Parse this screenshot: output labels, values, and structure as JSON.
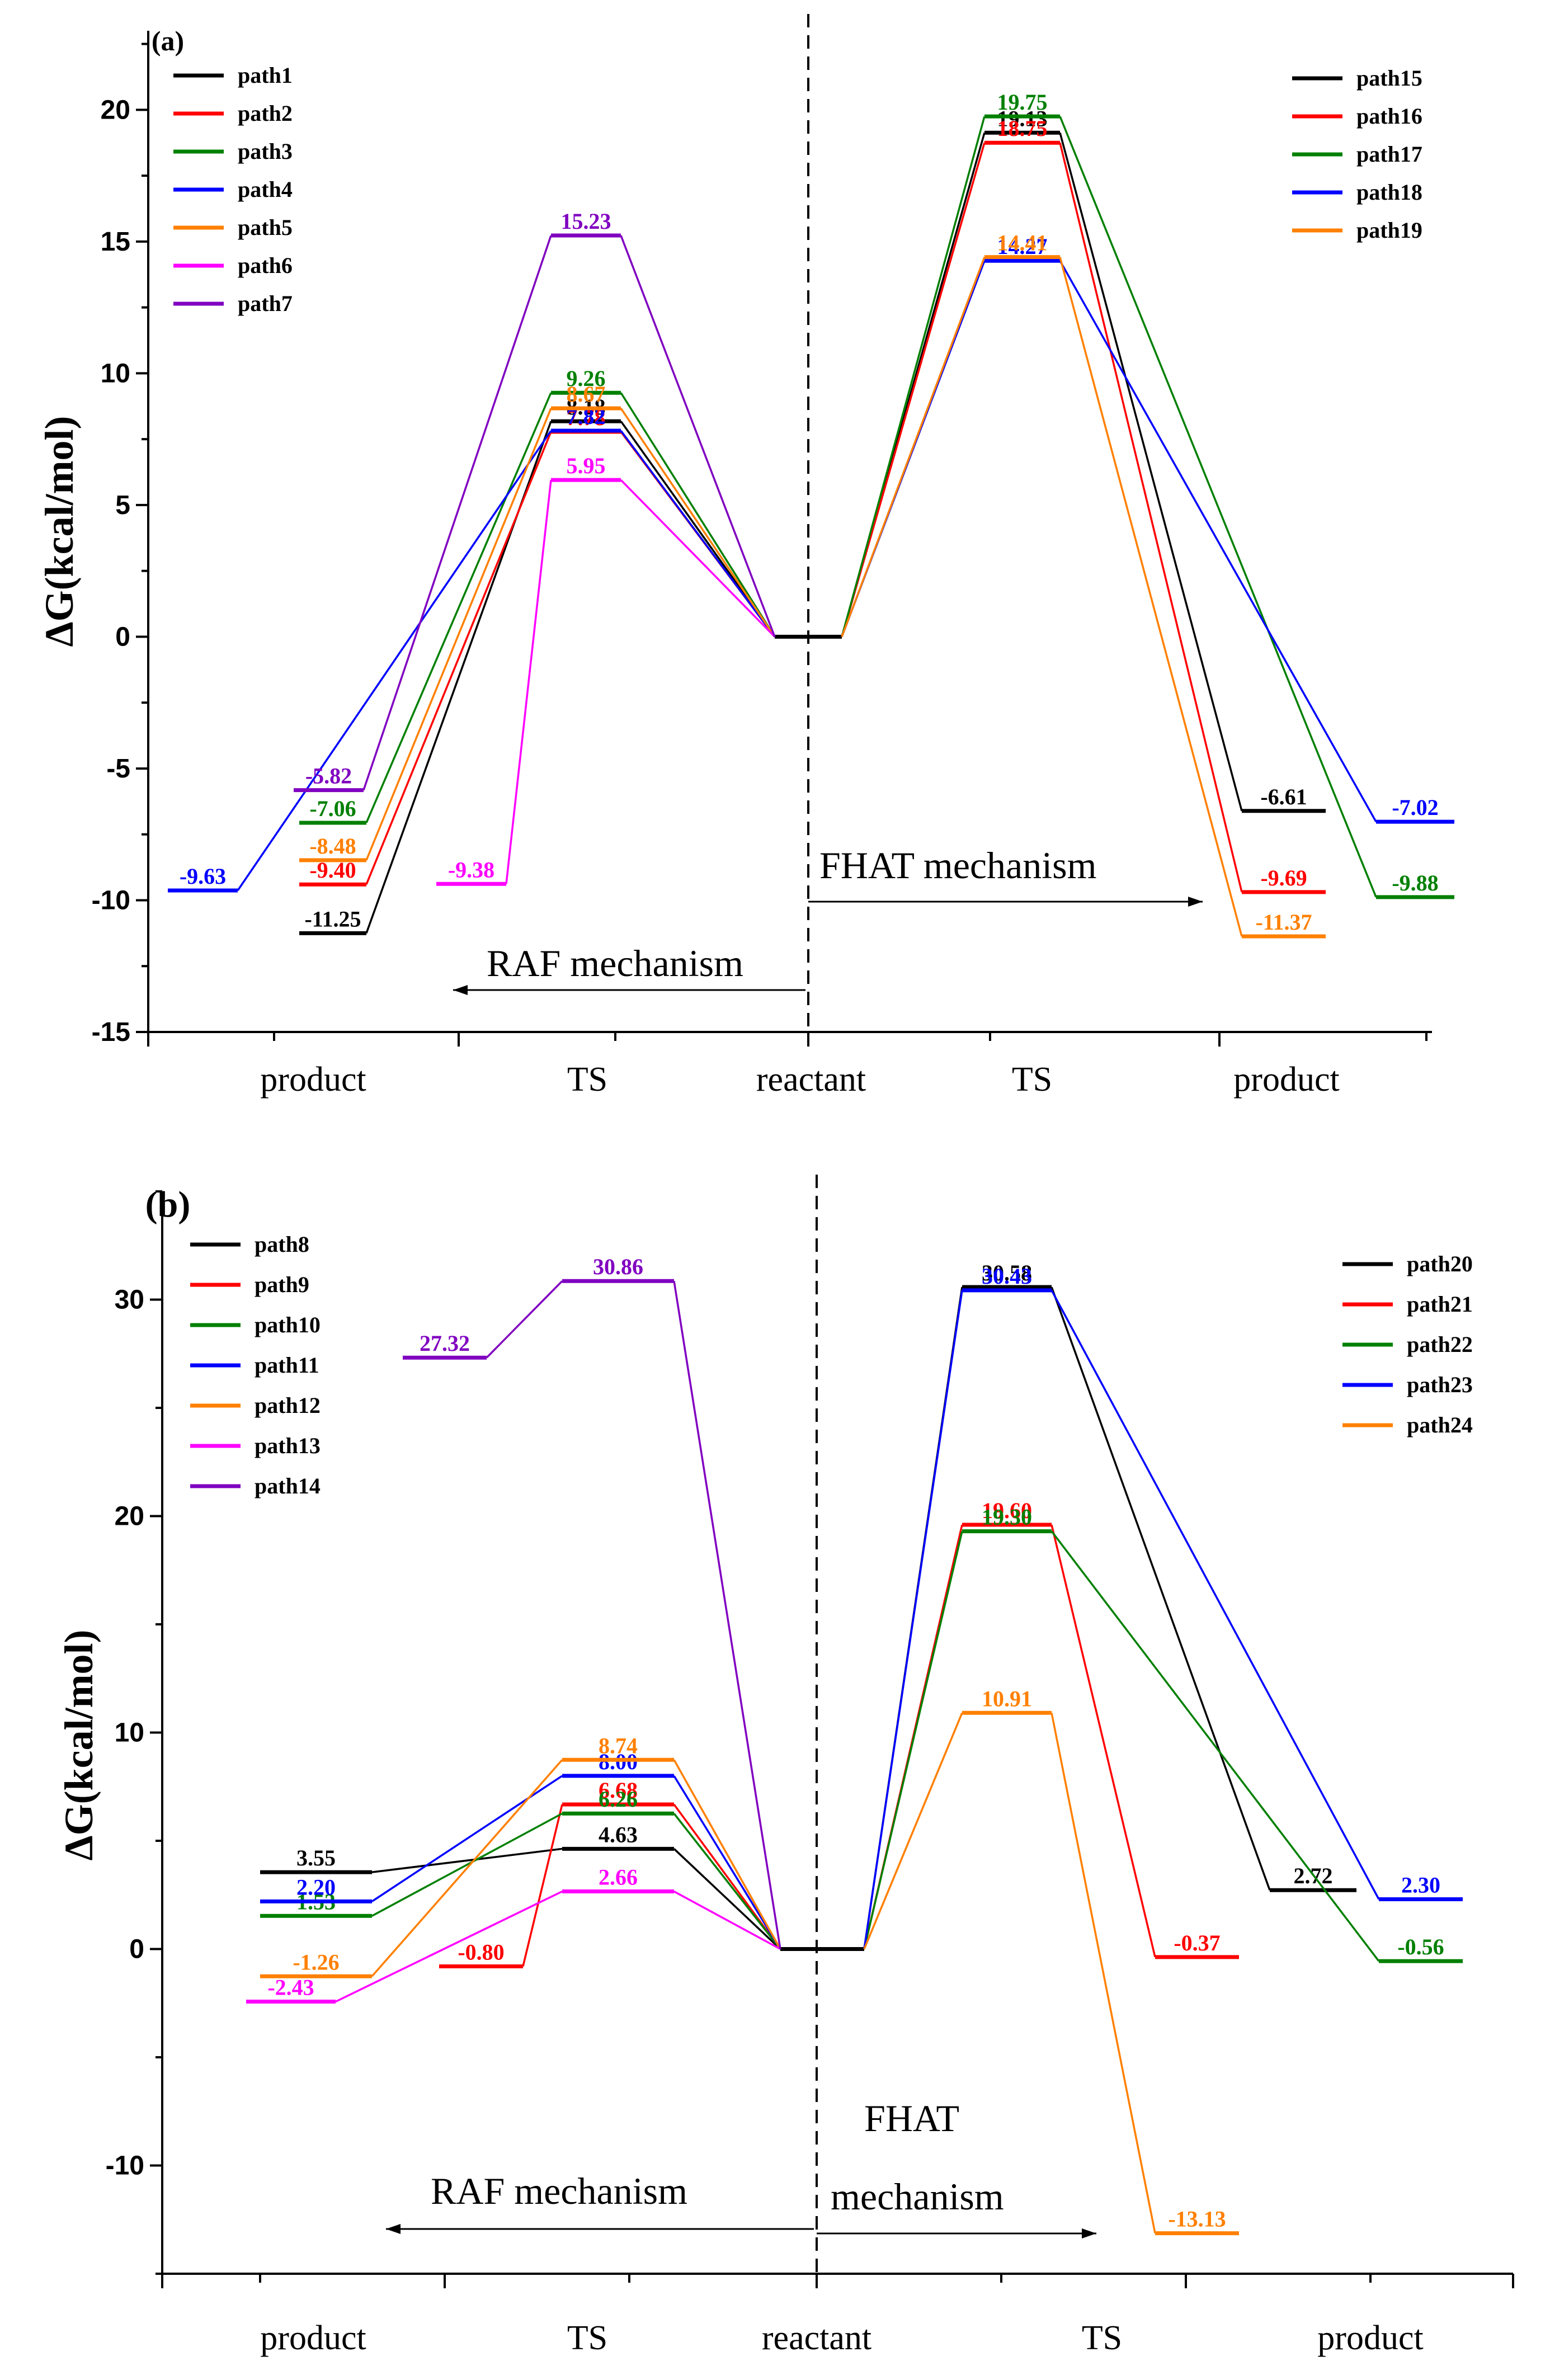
{
  "chart_data": [
    {
      "panel": "(a)",
      "type": "line",
      "ylabel": "ΔG(kcal/mol)",
      "ylim": [
        -15,
        23
      ],
      "yticks": [
        "20",
        "15",
        "10",
        "5",
        "0",
        "-5",
        "-10",
        "-15"
      ],
      "categories": [
        "product",
        "TS",
        "reactant",
        "TS",
        "product"
      ],
      "raf_label": "RAF mechanism",
      "fhat_label": "FHAT mechanism",
      "series": [
        {
          "name": "path1",
          "color": "#000000",
          "side": "RAF",
          "product": -11.25,
          "ts": 8.18,
          "product_label": "-11.25",
          "ts_label": "8.18"
        },
        {
          "name": "path2",
          "color": "#ff0000",
          "side": "RAF",
          "product": -9.4,
          "ts": 7.78,
          "product_label": "-9.40",
          "ts_label": "7.78"
        },
        {
          "name": "path3",
          "color": "#008000",
          "side": "RAF",
          "product": -7.06,
          "ts": 9.26,
          "product_label": "-7.06",
          "ts_label": "9.26"
        },
        {
          "name": "path4",
          "color": "#0000ff",
          "side": "RAF",
          "product": -9.63,
          "ts": 7.82,
          "product_label": "-9.63",
          "ts_label": "7.82"
        },
        {
          "name": "path5",
          "color": "#ff8000",
          "side": "RAF",
          "product": -8.48,
          "ts": 8.67,
          "product_label": "-8.48",
          "ts_label": "8.67"
        },
        {
          "name": "path6",
          "color": "#ff00ff",
          "side": "RAF",
          "product": -9.38,
          "ts": 5.95,
          "product_label": "-9.38",
          "ts_label": "5.95"
        },
        {
          "name": "path7",
          "color": "#8000c0",
          "side": "RAF",
          "product": -5.82,
          "ts": 15.23,
          "product_label": "-5.82",
          "ts_label": "15.23"
        },
        {
          "name": "path15",
          "color": "#000000",
          "side": "FHAT",
          "product": -6.61,
          "ts": 19.13,
          "product_label": "-6.61",
          "ts_label": "19.13"
        },
        {
          "name": "path16",
          "color": "#ff0000",
          "side": "FHAT",
          "product": -9.69,
          "ts": 18.75,
          "product_label": "-9.69",
          "ts_label": "18.75"
        },
        {
          "name": "path17",
          "color": "#008000",
          "side": "FHAT",
          "product": -9.88,
          "ts": 19.75,
          "product_label": "-9.88",
          "ts_label": "19.75"
        },
        {
          "name": "path18",
          "color": "#0000ff",
          "side": "FHAT",
          "product": -7.02,
          "ts": 14.27,
          "product_label": "-7.02",
          "ts_label": "14.27"
        },
        {
          "name": "path19",
          "color": "#ff8000",
          "side": "FHAT",
          "product": -11.37,
          "ts": 14.41,
          "product_label": "-11.37",
          "ts_label": "14.41"
        }
      ]
    },
    {
      "panel": "(b)",
      "type": "line",
      "ylabel": "ΔG(kcal/mol)",
      "ylim": [
        -15,
        35
      ],
      "yticks": [
        "30",
        "20",
        "10",
        "0",
        "-10"
      ],
      "categories": [
        "product",
        "TS",
        "reactant",
        "TS",
        "product"
      ],
      "raf_label": "RAF mechanism",
      "fhat_label_line1": "FHAT",
      "fhat_label_line2": "mechanism",
      "series": [
        {
          "name": "path8",
          "color": "#000000",
          "side": "RAF",
          "product": 3.55,
          "ts": 4.63,
          "product_label": "3.55",
          "ts_label": "4.63"
        },
        {
          "name": "path9",
          "color": "#ff0000",
          "side": "RAF",
          "product": -0.8,
          "ts": 6.68,
          "product_label": "-0.80",
          "ts_label": "6.68"
        },
        {
          "name": "path10",
          "color": "#008000",
          "side": "RAF",
          "product": 1.53,
          "ts": 6.26,
          "product_label": "1.53",
          "ts_label": "6.26"
        },
        {
          "name": "path11",
          "color": "#0000ff",
          "side": "RAF",
          "product": 2.2,
          "ts": 8.0,
          "product_label": "2.20",
          "ts_label": "8.00"
        },
        {
          "name": "path12",
          "color": "#ff8000",
          "side": "RAF",
          "product": -1.26,
          "ts": 8.74,
          "product_label": "-1.26",
          "ts_label": "8.74"
        },
        {
          "name": "path13",
          "color": "#ff00ff",
          "side": "RAF",
          "product": -2.43,
          "ts": 2.66,
          "product_label": "-2.43",
          "ts_label": "2.66"
        },
        {
          "name": "path14",
          "color": "#8000c0",
          "side": "RAF",
          "product": 27.32,
          "ts": 30.86,
          "product_label": "27.32",
          "ts_label": "30.86"
        },
        {
          "name": "path20",
          "color": "#000000",
          "side": "FHAT",
          "product": 2.72,
          "ts": 30.58,
          "product_label": "2.72",
          "ts_label": "30.58"
        },
        {
          "name": "path21",
          "color": "#ff0000",
          "side": "FHAT",
          "product": -0.37,
          "ts": 19.6,
          "product_label": "-0.37",
          "ts_label": "19.60"
        },
        {
          "name": "path22",
          "color": "#008000",
          "side": "FHAT",
          "product": -0.56,
          "ts": 19.3,
          "product_label": "-0.56",
          "ts_label": "19.30"
        },
        {
          "name": "path23",
          "color": "#0000ff",
          "side": "FHAT",
          "product": 2.3,
          "ts": 30.43,
          "product_label": "2.30",
          "ts_label": "30.43"
        },
        {
          "name": "path24",
          "color": "#ff8000",
          "side": "FHAT",
          "product": -13.13,
          "ts": 10.91,
          "product_label": "-13.13",
          "ts_label": "10.91"
        }
      ]
    }
  ]
}
